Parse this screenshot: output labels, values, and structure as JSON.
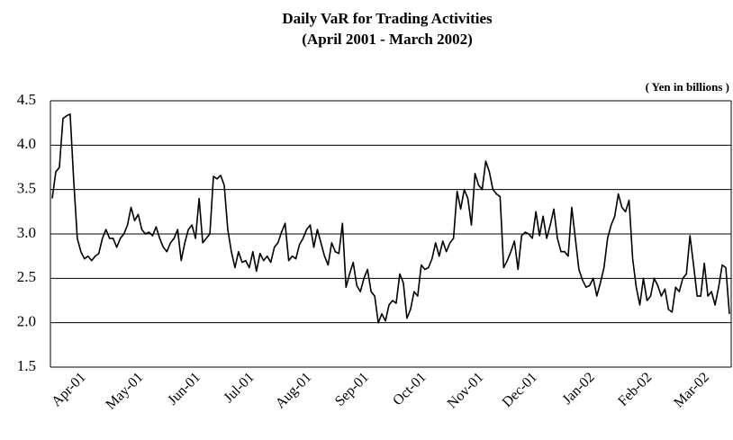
{
  "chart_data": {
    "type": "line",
    "title": "Daily VaR for Trading Activities",
    "subtitle": "(April 2001 - March 2002)",
    "annotation": "( Yen in billions )",
    "color": "#000000",
    "grid": true,
    "ylim": [
      1.5,
      4.5
    ],
    "yticks": [
      {
        "value": 1.5,
        "label": "1.5"
      },
      {
        "value": 2,
        "label": "2.0"
      },
      {
        "value": 2.5,
        "label": "2.5"
      },
      {
        "value": 3,
        "label": "3.0"
      },
      {
        "value": 3.5,
        "label": "3.5"
      },
      {
        "value": 4,
        "label": "4.0"
      },
      {
        "value": 4.5,
        "label": "4.5"
      }
    ],
    "categories": [
      null,
      null,
      null,
      null,
      null,
      null,
      null,
      "Apr-01",
      null,
      null,
      null,
      null,
      null,
      null,
      null,
      null,
      null,
      null,
      null,
      null,
      null,
      null,
      null,
      "May-01",
      null,
      null,
      null,
      null,
      null,
      null,
      null,
      null,
      null,
      null,
      null,
      null,
      null,
      null,
      null,
      "Jun-01",
      null,
      null,
      null,
      null,
      null,
      null,
      null,
      null,
      null,
      null,
      null,
      null,
      null,
      null,
      "Jul-01",
      null,
      null,
      null,
      null,
      null,
      null,
      null,
      null,
      null,
      null,
      null,
      null,
      null,
      null,
      null,
      "Aug-01",
      null,
      null,
      null,
      null,
      null,
      null,
      null,
      null,
      null,
      null,
      null,
      null,
      null,
      null,
      null,
      "Sep-01",
      null,
      null,
      null,
      null,
      null,
      null,
      null,
      null,
      null,
      null,
      null,
      null,
      null,
      null,
      null,
      "Oct-01",
      null,
      null,
      null,
      null,
      null,
      null,
      null,
      null,
      null,
      null,
      null,
      null,
      null,
      null,
      null,
      "Nov-01",
      null,
      null,
      null,
      null,
      null,
      null,
      null,
      null,
      null,
      null,
      null,
      null,
      null,
      null,
      "Dec-01",
      null,
      null,
      null,
      null,
      null,
      null,
      null,
      null,
      null,
      null,
      null,
      null,
      null,
      null,
      null,
      "Jan-02",
      null,
      null,
      null,
      null,
      null,
      null,
      null,
      null,
      null,
      null,
      null,
      null,
      null,
      null,
      null,
      "Feb-02",
      null,
      null,
      null,
      null,
      null,
      null,
      null,
      null,
      null,
      null,
      null,
      null,
      null,
      null,
      null,
      "Mar-02",
      null,
      null,
      null,
      null,
      null,
      null,
      null,
      null
    ],
    "values": [
      3.4,
      3.7,
      3.75,
      4.3,
      4.33,
      4.35,
      3.6,
      2.95,
      2.8,
      2.72,
      2.75,
      2.7,
      2.75,
      2.78,
      2.95,
      3.05,
      2.95,
      2.95,
      2.85,
      2.95,
      3.0,
      3.1,
      3.3,
      3.15,
      3.22,
      3.05,
      3.0,
      3.02,
      2.98,
      3.08,
      2.95,
      2.85,
      2.8,
      2.9,
      2.95,
      3.05,
      2.7,
      2.9,
      3.05,
      3.1,
      2.95,
      3.4,
      2.9,
      2.95,
      3.0,
      3.65,
      3.62,
      3.66,
      3.55,
      3.05,
      2.8,
      2.62,
      2.8,
      2.68,
      2.7,
      2.62,
      2.8,
      2.58,
      2.78,
      2.7,
      2.75,
      2.68,
      2.85,
      2.9,
      3.02,
      3.12,
      2.7,
      2.75,
      2.72,
      2.88,
      2.95,
      3.05,
      3.1,
      2.85,
      3.05,
      2.9,
      2.75,
      2.65,
      2.9,
      2.8,
      2.78,
      3.12,
      2.4,
      2.55,
      2.68,
      2.42,
      2.35,
      2.5,
      2.6,
      2.35,
      2.3,
      2.0,
      2.1,
      2.02,
      2.2,
      2.25,
      2.22,
      2.55,
      2.45,
      2.05,
      2.15,
      2.35,
      2.3,
      2.65,
      2.6,
      2.62,
      2.72,
      2.9,
      2.75,
      2.92,
      2.8,
      2.9,
      2.95,
      3.48,
      3.28,
      3.5,
      3.4,
      3.1,
      3.68,
      3.55,
      3.5,
      3.82,
      3.7,
      3.5,
      3.45,
      3.42,
      2.62,
      2.7,
      2.8,
      2.92,
      2.6,
      2.98,
      3.02,
      3.0,
      2.95,
      3.25,
      2.98,
      3.2,
      2.95,
      3.1,
      3.28,
      2.95,
      2.8,
      2.8,
      2.75,
      3.3,
      2.95,
      2.6,
      2.48,
      2.4,
      2.42,
      2.5,
      2.3,
      2.45,
      2.62,
      2.95,
      3.1,
      3.2,
      3.45,
      3.3,
      3.25,
      3.38,
      2.72,
      2.4,
      2.2,
      2.5,
      2.25,
      2.3,
      2.5,
      2.42,
      2.3,
      2.38,
      2.15,
      2.12,
      2.4,
      2.35,
      2.5,
      2.55,
      2.98,
      2.65,
      2.3,
      2.3,
      2.67,
      2.3,
      2.35,
      2.2,
      2.4,
      2.65,
      2.62,
      2.1
    ]
  }
}
